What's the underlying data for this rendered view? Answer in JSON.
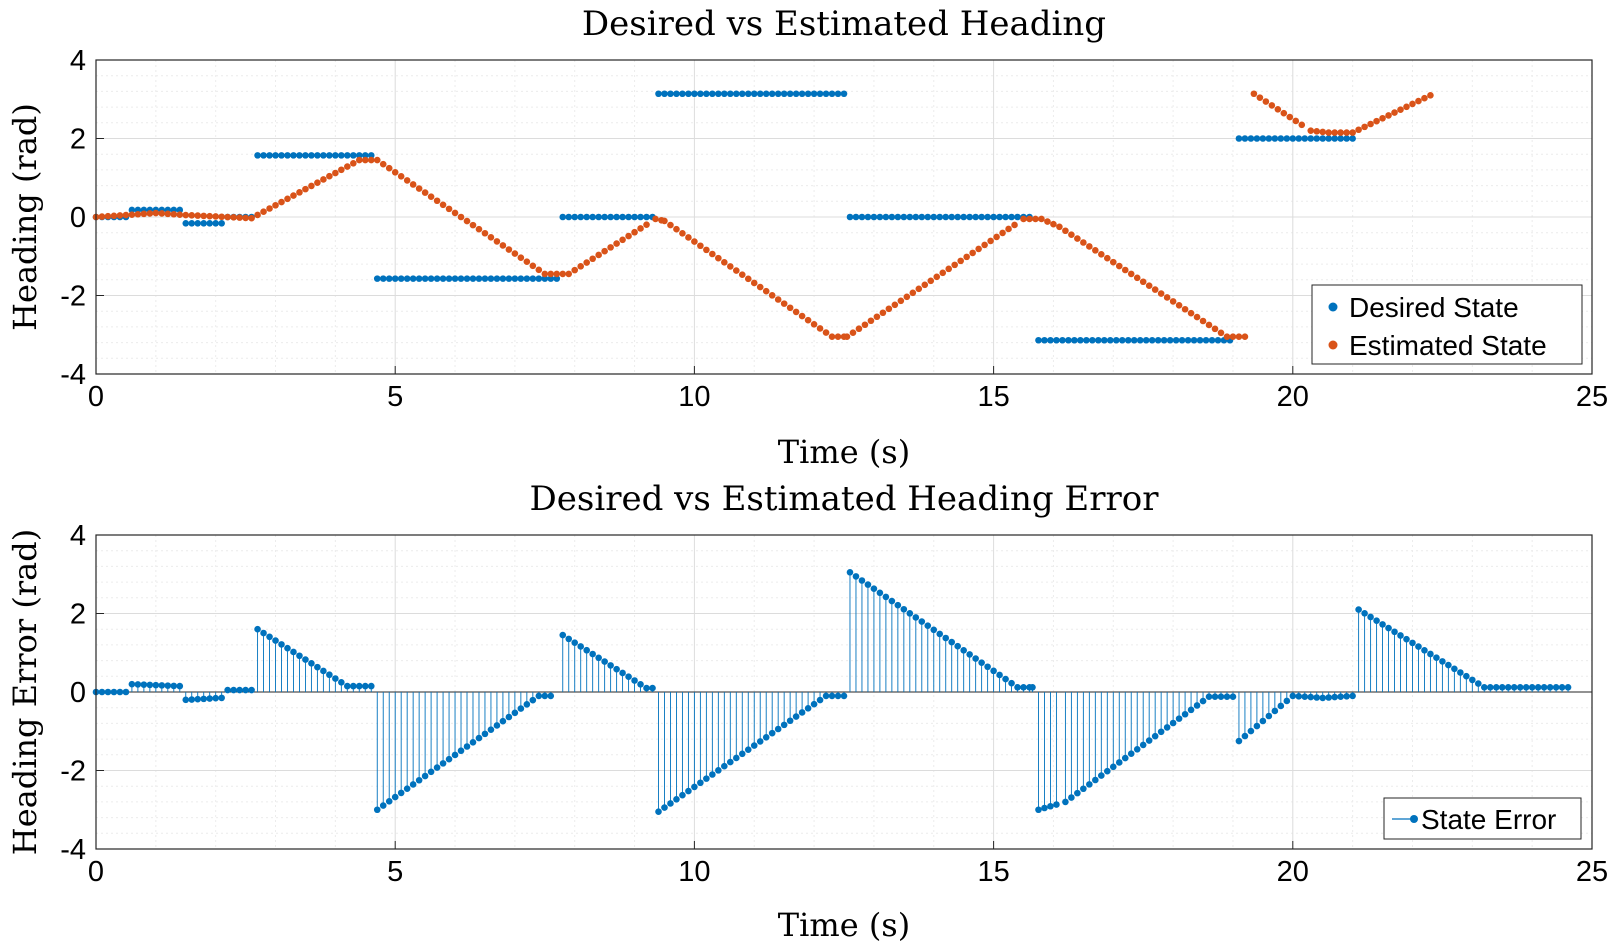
{
  "colors": {
    "desired": "#0072BD",
    "estimated": "#D95319",
    "error": "#0072BD",
    "axis": "#262626"
  },
  "chart_data": [
    {
      "type": "scatter",
      "title": "Desired vs Estimated Heading",
      "xlabel": "Time (s)",
      "ylabel": "Heading (rad)",
      "xlim": [
        0,
        25
      ],
      "ylim": [
        -4,
        4
      ],
      "xticks": [
        "0",
        "5",
        "10",
        "15",
        "20",
        "25"
      ],
      "yticks": [
        "-4",
        "-2",
        "0",
        "2",
        "4"
      ],
      "grid": true,
      "minor_grid": true,
      "legend_position": "bottom-right",
      "series": [
        {
          "name": "Desired State",
          "color": "#0072BD",
          "segments": [
            {
              "x_start": 0.0,
              "x_end": 0.55,
              "y": 0.0
            },
            {
              "x_start": 0.6,
              "x_end": 1.4,
              "y": 0.18
            },
            {
              "x_start": 1.5,
              "x_end": 2.1,
              "y": -0.16
            },
            {
              "x_start": 2.2,
              "x_end": 2.6,
              "y": 0.0
            },
            {
              "x_start": 2.7,
              "x_end": 4.6,
              "y": 1.57
            },
            {
              "x_start": 4.7,
              "x_end": 7.75,
              "y": -1.57
            },
            {
              "x_start": 7.8,
              "x_end": 9.3,
              "y": 0.0
            },
            {
              "x_start": 9.4,
              "x_end": 12.5,
              "y": 3.14
            },
            {
              "x_start": 12.6,
              "x_end": 15.65,
              "y": 0.0
            },
            {
              "x_start": 15.75,
              "x_end": 19.0,
              "y": -3.14
            },
            {
              "x_start": 19.1,
              "x_end": 21.0,
              "y": 2.0
            }
          ],
          "step": 0.1
        },
        {
          "name": "Estimated State",
          "color": "#D95319",
          "x": [
            0,
            1.0,
            1.5,
            2.6,
            4.4,
            4.7,
            7.5,
            7.9,
            9.35,
            9.5,
            12.3,
            12.55,
            15.5,
            15.8,
            16.1,
            18.9,
            19.3,
            19.35,
            20.3,
            20.6,
            21.0,
            22.3
          ],
          "y": [
            0,
            0.1,
            0.05,
            -0.03,
            1.45,
            1.45,
            -1.45,
            -1.45,
            -0.05,
            -0.1,
            -3.05,
            -3.05,
            -0.05,
            -0.05,
            -0.25,
            -3.05,
            -3.05,
            3.14,
            2.2,
            2.15,
            2.15,
            3.1
          ],
          "step": 0.1
        }
      ]
    },
    {
      "type": "stem",
      "title": "Desired vs Estimated Heading Error",
      "xlabel": "Time (s)",
      "ylabel": "Heading Error (rad)",
      "xlim": [
        0,
        25
      ],
      "ylim": [
        -4,
        4
      ],
      "xticks": [
        "0",
        "5",
        "10",
        "15",
        "20",
        "25"
      ],
      "yticks": [
        "-4",
        "-2",
        "0",
        "2",
        "4"
      ],
      "grid": true,
      "minor_grid": true,
      "legend_position": "bottom-right",
      "series": [
        {
          "name": "State Error",
          "color": "#0072BD",
          "x": [
            0,
            0.55,
            0.6,
            1.4,
            1.5,
            2.1,
            2.2,
            2.6,
            2.7,
            4.2,
            4.6,
            4.7,
            7.4,
            7.75,
            7.8,
            9.2,
            9.3,
            9.4,
            12.2,
            12.5,
            12.6,
            15.4,
            15.65,
            15.75,
            16.2,
            18.6,
            19.0,
            19.1,
            20.0,
            20.5,
            21.0,
            21.1,
            23.2,
            24.6
          ],
          "y": [
            0,
            0,
            0.2,
            0.15,
            -0.2,
            -0.15,
            0.05,
            0.05,
            1.6,
            0.15,
            0.15,
            -3.0,
            -0.1,
            -0.1,
            1.45,
            0.1,
            0.1,
            -3.05,
            -0.1,
            -0.1,
            3.05,
            0.12,
            0.12,
            -3.0,
            -2.8,
            -0.12,
            -0.12,
            -1.25,
            -0.1,
            -0.15,
            -0.1,
            2.1,
            0.12,
            0.12
          ],
          "step": 0.1
        }
      ]
    }
  ]
}
